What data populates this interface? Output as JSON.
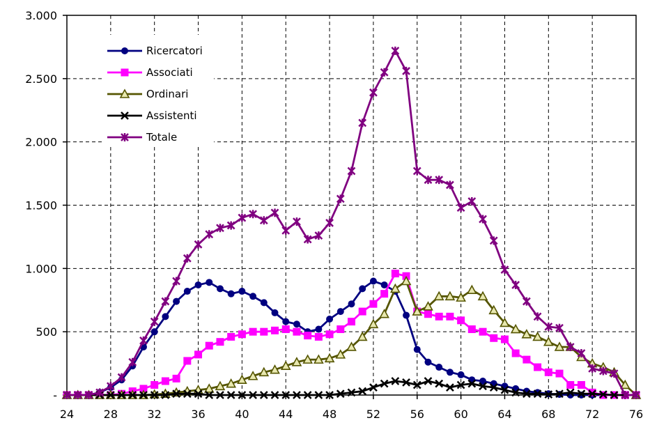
{
  "chart_data": {
    "type": "line",
    "title": "",
    "xlabel": "",
    "ylabel": "",
    "xlim": [
      24,
      76
    ],
    "ylim": [
      0,
      3000
    ],
    "xticks": [
      "24",
      "28",
      "32",
      "36",
      "40",
      "44",
      "48",
      "52",
      "56",
      "60",
      "64",
      "68",
      "72",
      "76"
    ],
    "yticks": [
      "-",
      "500",
      "1.000",
      "1.500",
      "2.000",
      "2.500",
      "3.000"
    ],
    "grid": true,
    "legend_position": "top-left",
    "x": [
      24,
      25,
      26,
      27,
      28,
      29,
      30,
      31,
      32,
      33,
      34,
      35,
      36,
      37,
      38,
      39,
      40,
      41,
      42,
      43,
      44,
      45,
      46,
      47,
      48,
      49,
      50,
      51,
      52,
      53,
      54,
      55,
      56,
      57,
      58,
      59,
      60,
      61,
      62,
      63,
      64,
      65,
      66,
      67,
      68,
      69,
      70,
      71,
      72,
      73,
      74,
      75,
      76
    ],
    "series": [
      {
        "name": "Ricercatori",
        "color": "#000080",
        "marker": "circle",
        "values": [
          0,
          0,
          0,
          20,
          60,
          120,
          230,
          380,
          500,
          620,
          740,
          820,
          870,
          890,
          840,
          800,
          820,
          780,
          730,
          650,
          580,
          560,
          500,
          520,
          600,
          660,
          720,
          840,
          900,
          870,
          820,
          630,
          360,
          260,
          220,
          180,
          160,
          120,
          110,
          90,
          70,
          50,
          30,
          20,
          10,
          5,
          0,
          0,
          0,
          0,
          0,
          0,
          0
        ]
      },
      {
        "name": "Associati",
        "color": "#ff00ff",
        "marker": "square",
        "values": [
          0,
          0,
          0,
          0,
          0,
          10,
          30,
          50,
          80,
          110,
          130,
          270,
          320,
          390,
          420,
          460,
          480,
          500,
          500,
          510,
          520,
          500,
          470,
          460,
          480,
          520,
          580,
          660,
          720,
          800,
          960,
          940,
          660,
          640,
          620,
          620,
          590,
          520,
          500,
          450,
          440,
          330,
          280,
          220,
          180,
          170,
          80,
          80,
          20,
          0,
          0,
          0,
          0
        ]
      },
      {
        "name": "Ordinari",
        "color": "#555500",
        "marker": "triangle",
        "values": [
          0,
          0,
          0,
          0,
          0,
          0,
          0,
          0,
          5,
          10,
          20,
          30,
          40,
          50,
          70,
          90,
          120,
          150,
          180,
          200,
          230,
          260,
          280,
          280,
          290,
          320,
          380,
          460,
          560,
          640,
          840,
          900,
          660,
          700,
          780,
          780,
          770,
          830,
          780,
          670,
          570,
          520,
          480,
          460,
          420,
          380,
          380,
          300,
          250,
          220,
          180,
          80,
          0
        ]
      },
      {
        "name": "Assistenti",
        "color": "#000000",
        "marker": "cross",
        "values": [
          0,
          0,
          0,
          0,
          0,
          0,
          0,
          0,
          0,
          0,
          10,
          10,
          10,
          0,
          0,
          0,
          0,
          0,
          0,
          0,
          0,
          0,
          0,
          0,
          0,
          10,
          20,
          30,
          60,
          90,
          110,
          100,
          80,
          110,
          90,
          60,
          80,
          90,
          70,
          60,
          40,
          20,
          10,
          10,
          5,
          10,
          20,
          10,
          10,
          5,
          0,
          0,
          0
        ]
      },
      {
        "name": "Totale",
        "color": "#800080",
        "marker": "star",
        "values": [
          0,
          0,
          0,
          20,
          70,
          140,
          260,
          430,
          580,
          740,
          900,
          1080,
          1190,
          1270,
          1320,
          1340,
          1400,
          1430,
          1380,
          1440,
          1300,
          1370,
          1230,
          1260,
          1360,
          1550,
          1770,
          2150,
          2390,
          2550,
          2720,
          2560,
          1770,
          1700,
          1700,
          1660,
          1480,
          1530,
          1390,
          1220,
          990,
          870,
          740,
          620,
          540,
          530,
          380,
          330,
          210,
          190,
          170,
          0,
          0
        ]
      }
    ]
  }
}
